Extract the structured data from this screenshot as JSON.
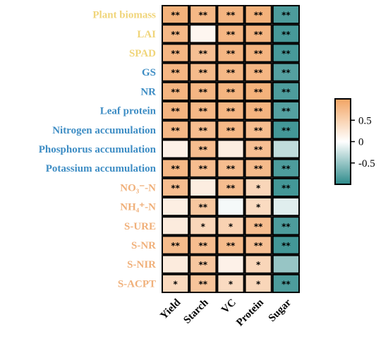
{
  "chart_data": {
    "type": "heatmap",
    "rows": [
      {
        "label": "Plant biomass",
        "group": "yellow"
      },
      {
        "label": "LAI",
        "group": "yellow"
      },
      {
        "label": "SPAD",
        "group": "yellow"
      },
      {
        "label": "GS",
        "group": "blue"
      },
      {
        "label": "NR",
        "group": "blue"
      },
      {
        "label": "Leaf protein",
        "group": "blue"
      },
      {
        "label": "Nitrogen accumulation",
        "group": "blue"
      },
      {
        "label": "Phosphorus accumulation",
        "group": "blue"
      },
      {
        "label": "Potassium accumulation",
        "group": "blue"
      },
      {
        "label": "NO₃⁻-N",
        "group": "orange"
      },
      {
        "label": "NH₄⁺-N",
        "group": "orange"
      },
      {
        "label": "S-URE",
        "group": "orange"
      },
      {
        "label": "S-NR",
        "group": "orange"
      },
      {
        "label": "S-NIR",
        "group": "orange"
      },
      {
        "label": "S-ACPT",
        "group": "orange"
      }
    ],
    "columns": [
      "Yield",
      "Starch",
      "VC",
      "Protein",
      "Sugar"
    ],
    "values": [
      [
        0.85,
        0.78,
        0.82,
        0.85,
        -0.85
      ],
      [
        0.78,
        0.1,
        0.8,
        0.82,
        -0.88
      ],
      [
        0.8,
        0.7,
        0.8,
        0.82,
        -0.88
      ],
      [
        0.8,
        0.75,
        0.78,
        0.8,
        -0.82
      ],
      [
        0.82,
        0.8,
        0.82,
        0.85,
        -0.85
      ],
      [
        0.82,
        0.78,
        0.8,
        0.82,
        -0.82
      ],
      [
        0.78,
        0.72,
        0.78,
        0.72,
        -0.9
      ],
      [
        0.15,
        0.72,
        0.2,
        0.7,
        -0.3
      ],
      [
        0.78,
        0.72,
        0.72,
        0.75,
        -0.85
      ],
      [
        0.72,
        0.2,
        0.72,
        0.45,
        -0.9
      ],
      [
        0.18,
        0.62,
        -0.05,
        0.4,
        -0.15
      ],
      [
        0.22,
        0.45,
        0.5,
        0.72,
        -0.85
      ],
      [
        0.75,
        0.72,
        0.75,
        0.7,
        -0.9
      ],
      [
        0.22,
        0.62,
        0.15,
        0.45,
        -0.5
      ],
      [
        0.42,
        0.65,
        0.4,
        0.45,
        -0.85
      ]
    ],
    "significance": [
      [
        "**",
        "**",
        "**",
        "**",
        "**"
      ],
      [
        "**",
        "",
        "**",
        "**",
        "**"
      ],
      [
        "**",
        "**",
        "**",
        "**",
        "**"
      ],
      [
        "**",
        "**",
        "**",
        "**",
        "**"
      ],
      [
        "**",
        "**",
        "**",
        "**",
        "**"
      ],
      [
        "**",
        "**",
        "**",
        "**",
        "**"
      ],
      [
        "**",
        "**",
        "**",
        "**",
        "**"
      ],
      [
        "",
        "**",
        "",
        "**",
        ""
      ],
      [
        "**",
        "**",
        "**",
        "**",
        "**"
      ],
      [
        "**",
        "",
        "**",
        "*",
        "**"
      ],
      [
        "",
        "**",
        "",
        "*",
        ""
      ],
      [
        "",
        "*",
        "*",
        "**",
        "**"
      ],
      [
        "**",
        "**",
        "**",
        "**",
        "**"
      ],
      [
        "",
        "**",
        "",
        "*",
        ""
      ],
      [
        "*",
        "**",
        "*",
        "*",
        "**"
      ]
    ],
    "colorbar": {
      "ticks": [
        {
          "value": 0.5,
          "label": "0.5"
        },
        {
          "value": 0,
          "label": "0"
        },
        {
          "value": -0.5,
          "label": "-0.5"
        }
      ],
      "range": [
        -1,
        1
      ],
      "colors": {
        "positive": "#F2A464",
        "neutral": "#FFFFFF",
        "negative": "#2E8B8B"
      }
    },
    "label_colors": {
      "yellow": "#F0D57A",
      "blue": "#3E8DC4",
      "orange": "#F0B07A"
    }
  }
}
